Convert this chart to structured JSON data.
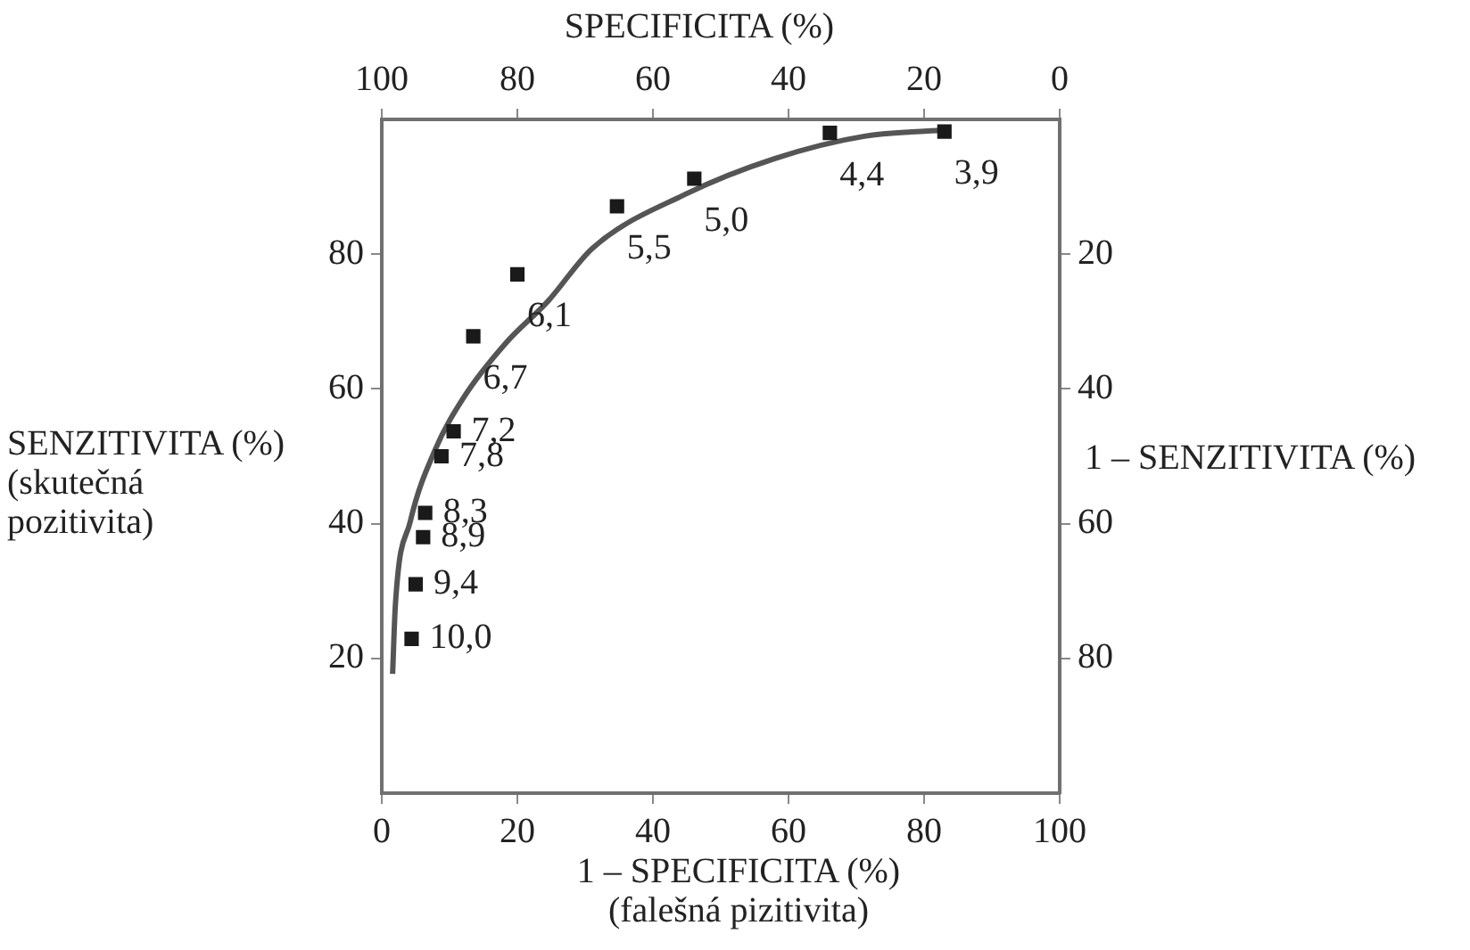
{
  "chart_data": {
    "type": "scatter",
    "x2label": "SPECIFICITA (%)",
    "xlabel": "1 – SPECIFICITA (%)\n(falešná pizitivita)",
    "ylabel": "SENZITIVITA (%)\n(skutečná\npozitivita)",
    "y2label": "1 – SENZITIVITA (%)",
    "annotations": [
      {
        "text": "10,0",
        "x": 4.4,
        "y": 22.9
      },
      {
        "text": "9,4",
        "x": 5.0,
        "y": 31
      },
      {
        "text": "8,9",
        "x": 6.1,
        "y": 38
      },
      {
        "text": "8,3",
        "x": 6.4,
        "y": 41.6
      },
      {
        "text": "7,8",
        "x": 8.8,
        "y": 50
      },
      {
        "text": "7,2",
        "x": 10.6,
        "y": 53.7
      },
      {
        "text": "6,7",
        "x": 13.5,
        "y": 67.8
      },
      {
        "text": "6,1",
        "x": 20.0,
        "y": 77
      },
      {
        "text": "5,5",
        "x": 34.7,
        "y": 87.1
      },
      {
        "text": "5,0",
        "x": 46.1,
        "y": 91.2
      },
      {
        "text": "4,4",
        "x": 66.1,
        "y": 98.0
      },
      {
        "text": "3,9",
        "x": 83.0,
        "y": 98.2
      }
    ],
    "xlim": [
      0,
      100
    ],
    "xticks": [
      0,
      20,
      40,
      60,
      80,
      100
    ],
    "x2lim": [
      100,
      0
    ],
    "x2ticks": [
      100,
      80,
      60,
      40,
      20,
      0
    ],
    "ylim": [
      0,
      100
    ],
    "yticks": [
      20,
      40,
      60,
      80
    ],
    "y2lim": [
      100,
      0
    ],
    "y2ticks": [
      20,
      40,
      60,
      80
    ],
    "series": [
      {
        "color": "#1a1a1a",
        "marker": "square",
        "x": [
          4.4,
          5.0,
          6.1,
          6.4,
          8.8,
          10.6,
          13.5,
          20.0,
          34.7,
          46.1,
          66.1,
          83.0
        ],
        "values": [
          22.9,
          31,
          38,
          41.6,
          50,
          53.7,
          67.8,
          77,
          87.1,
          91.2,
          98.0,
          98.2
        ]
      },
      {
        "type": "line",
        "color": "#555555",
        "marker": "none",
        "line_style": "solid",
        "x": [
          1.6,
          2.0,
          4.2,
          7.8,
          12.2,
          18.3,
          24.5,
          31.1,
          44.8,
          58,
          71.2,
          82.7
        ],
        "values": [
          17.7,
          27.8,
          40.3,
          50.8,
          58.9,
          66.8,
          73,
          80.9,
          88.9,
          94.2,
          97.5,
          98.4
        ]
      }
    ]
  }
}
